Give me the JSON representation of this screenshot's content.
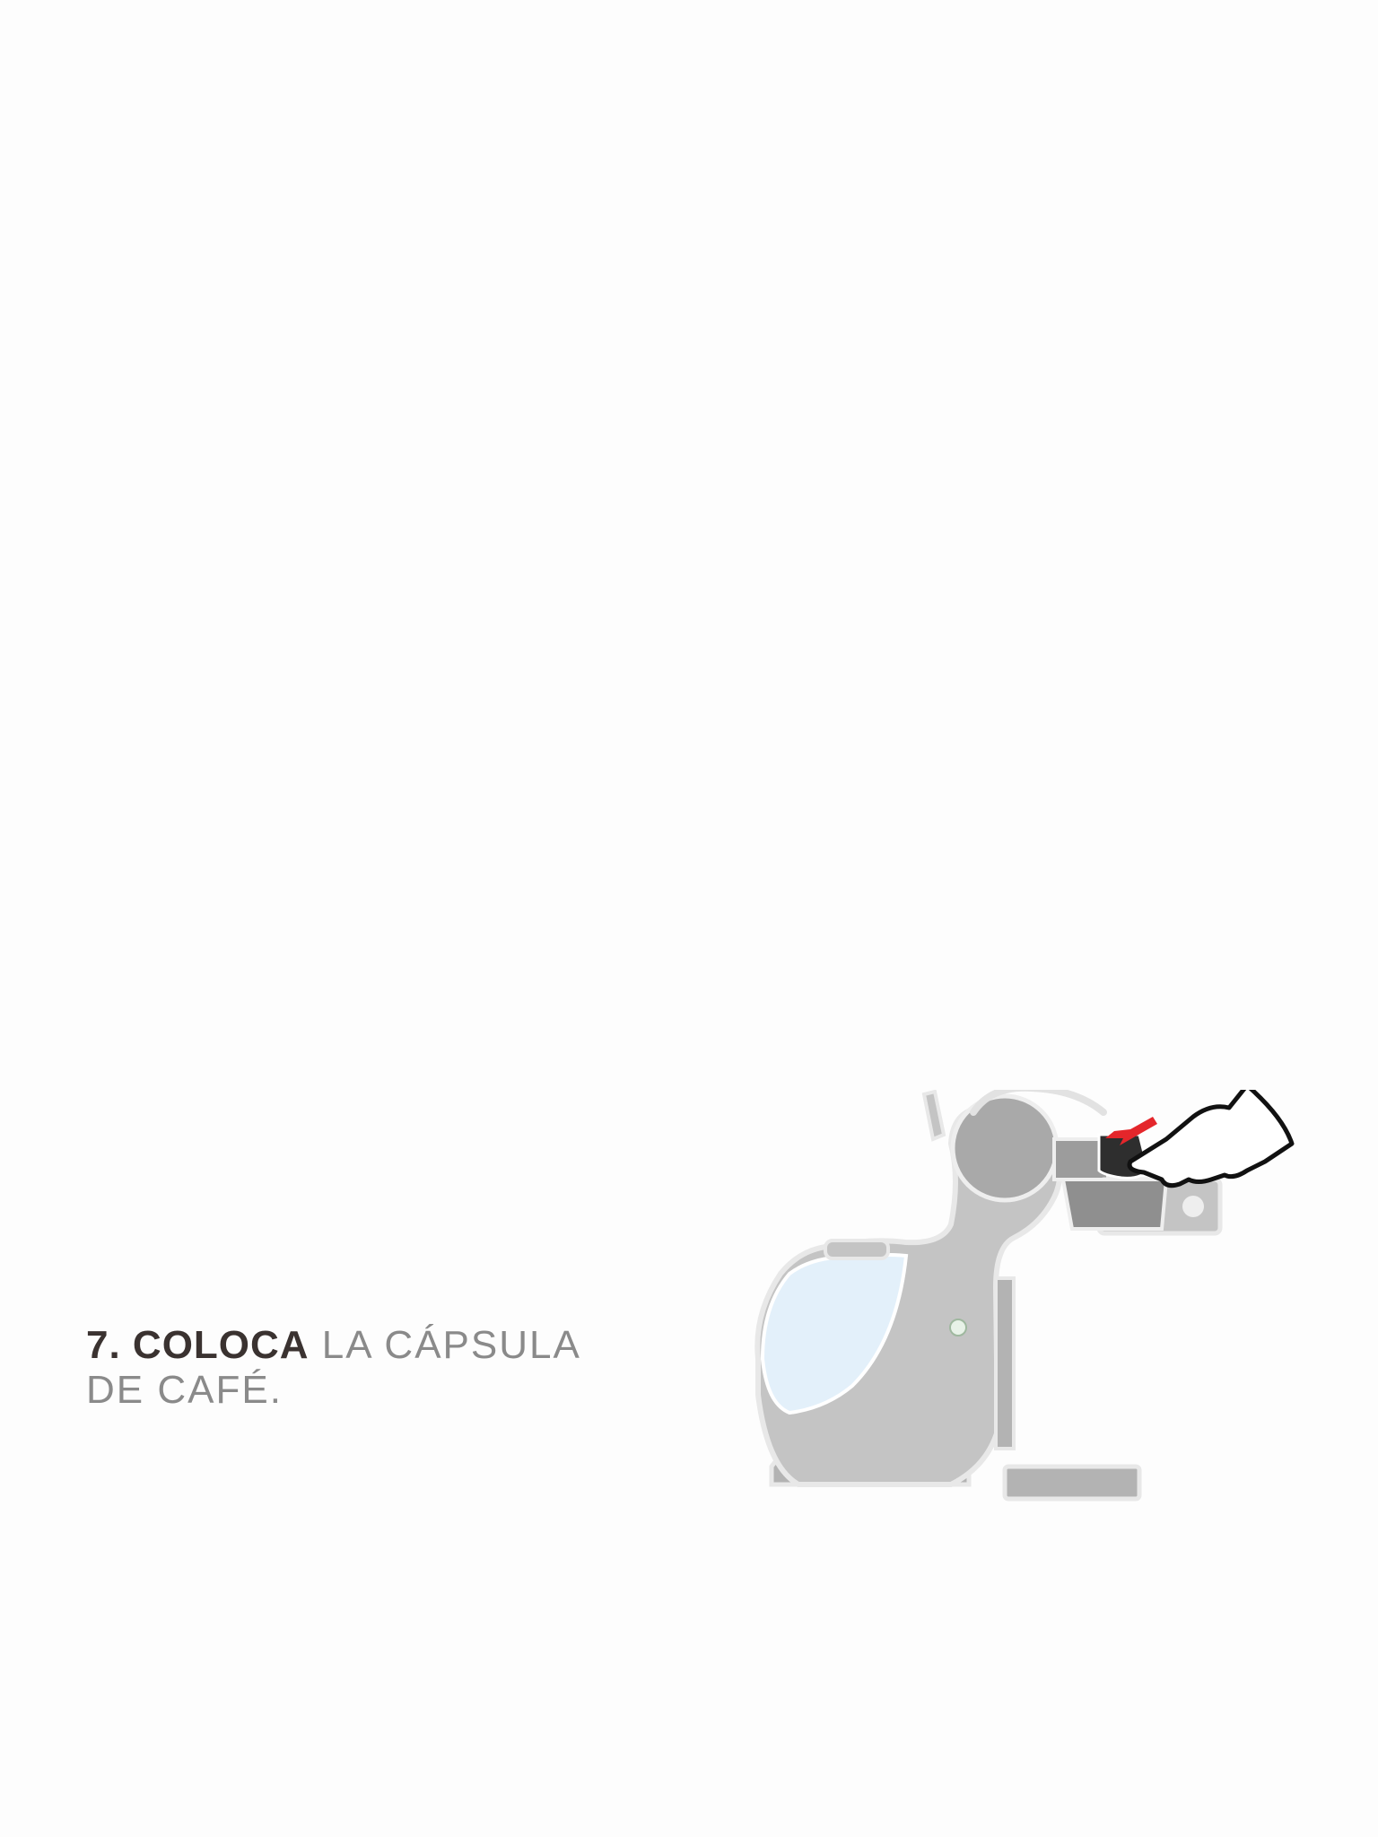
{
  "step": {
    "bold_text": "7. COLOCA",
    "rest_line1": " LA CÁPSULA",
    "rest_line2": "DE CAFÉ."
  },
  "illustration": {
    "subject": "coffee-machine-capsule-insertion",
    "colors": {
      "machine": "#c4c4c4",
      "tank": "#e3f0fa",
      "capsule": "#2e2e2e",
      "arrow": "#e4262b",
      "outline": "#e8e8e8"
    }
  }
}
